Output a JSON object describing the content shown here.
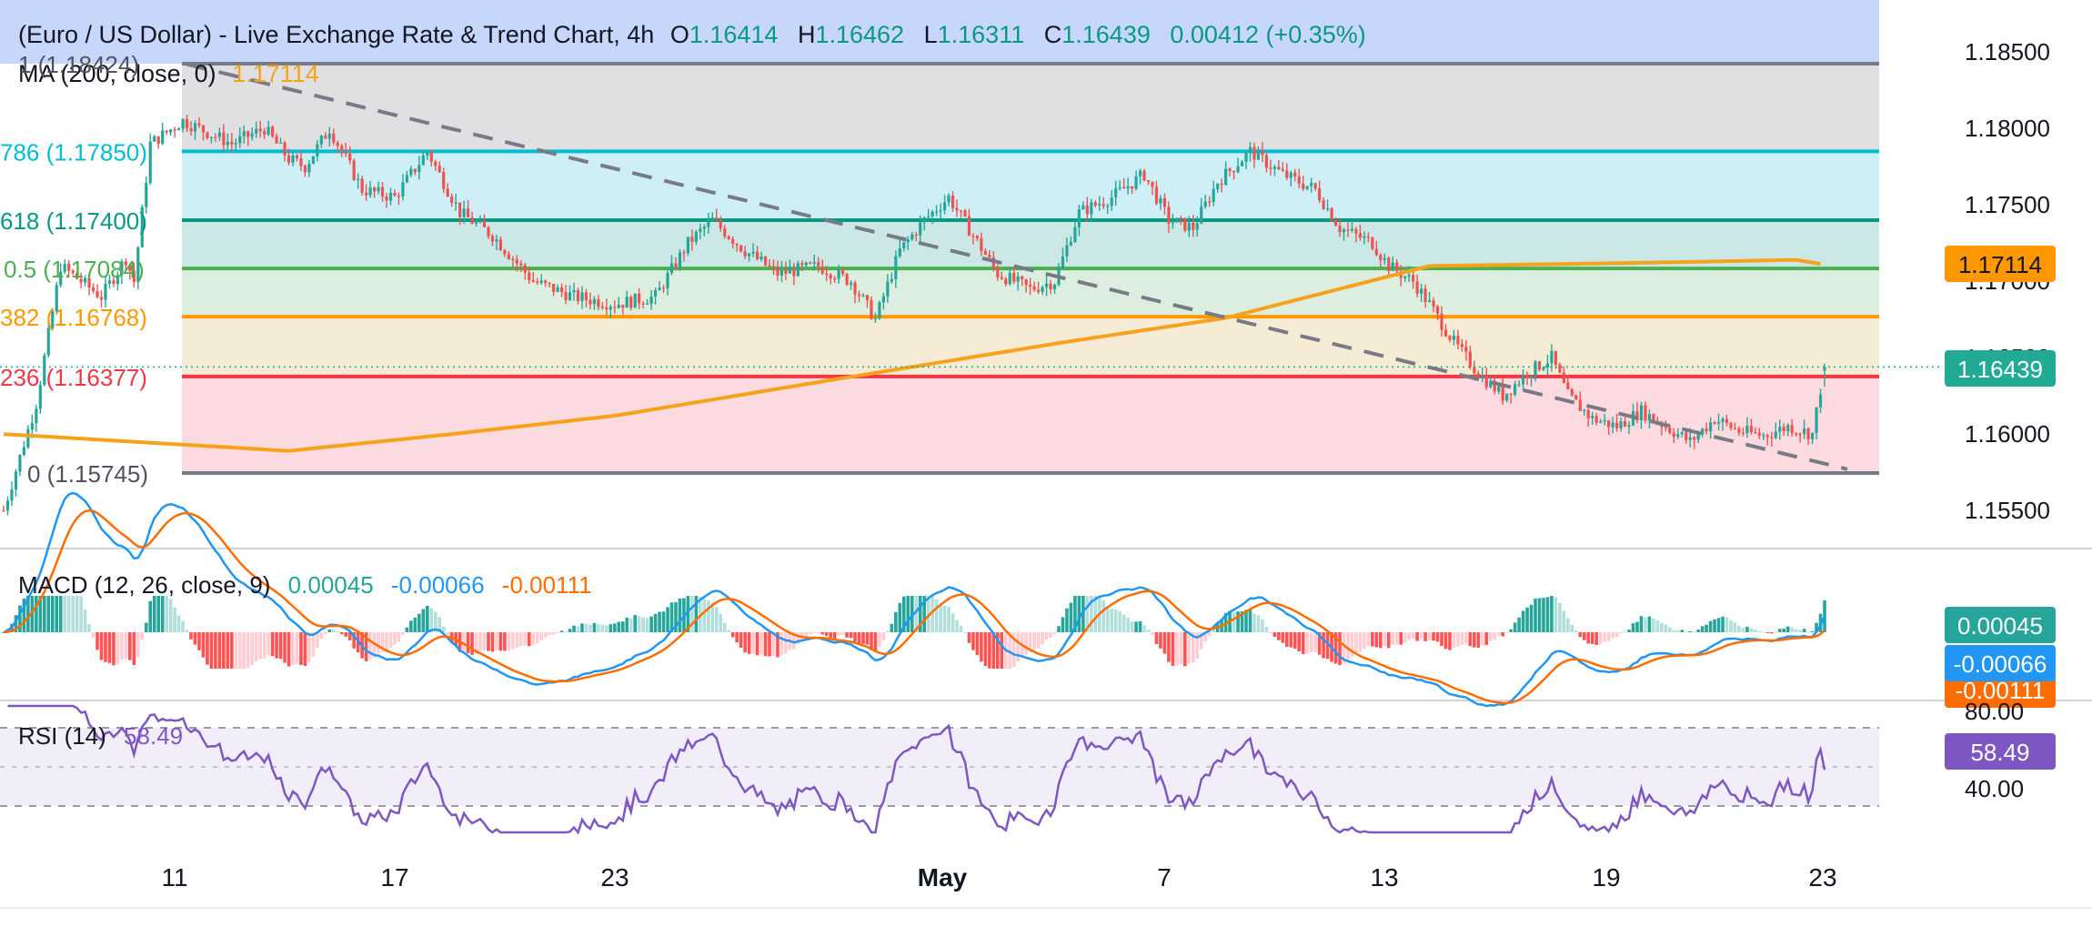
{
  "header": {
    "title": "(Euro / US Dollar) - Live Exchange Rate & Trend Chart, 4h",
    "open_label": "O",
    "open": "1.16414",
    "high_label": "H",
    "high": "1.16462",
    "low_label": "L",
    "low": "1.16311",
    "close_label": "C",
    "close": "1.16439",
    "change": "0.00412 (+0.35%)"
  },
  "ma": {
    "label": "MA (200, close, 0)",
    "value": "1.17114",
    "badge": "1.17114"
  },
  "last_price_badge": "1.16439",
  "fib_labels": [
    {
      "text": "1 (1.18424)",
      "level": 1.18424
    },
    {
      "text": "786 (1.17850)",
      "level": 1.1785
    },
    {
      "text": "618 (1.17400)",
      "level": 1.174
    },
    {
      "text": "0.5 (1.17084)",
      "level": 1.17084
    },
    {
      "text": "382 (1.16768)",
      "level": 1.16768
    },
    {
      "text": "236 (1.16377)",
      "level": 1.16377
    },
    {
      "text": "0 (1.15745)",
      "level": 1.15745
    }
  ],
  "price_axis": [
    "1.18500",
    "1.18000",
    "1.17500",
    "1.17000",
    "1.16500",
    "1.16000",
    "1.15500"
  ],
  "time_axis": [
    "11",
    "17",
    "23",
    "May",
    "7",
    "13",
    "19",
    "23"
  ],
  "macd": {
    "label": "MACD (12, 26, close, 9)",
    "hist": "0.00045",
    "macd": "-0.00066",
    "signal": "-0.00111",
    "badge_hist": "0.00045",
    "badge_macd": "-0.00066",
    "badge_signal": "-0.00111"
  },
  "rsi": {
    "label": "RSI (14)",
    "value": "58.49",
    "badge": "58.49",
    "axis": [
      "80.00",
      "40.00"
    ]
  },
  "colors": {
    "up": "#26a69a",
    "down": "#ef5350",
    "ma": "#f7a21b",
    "macd": "#2196f3",
    "signal": "#ff6d00",
    "rsi": "#7e57c2",
    "trend": "#787b86",
    "last": "#22ab94"
  },
  "chart_data": {
    "type": "candlestick",
    "timeframe": "4h",
    "ylim": [
      1.1525,
      1.187
    ],
    "ohlc_last": {
      "open": 1.16414,
      "high": 1.16462,
      "low": 1.16311,
      "close": 1.16439
    },
    "close_path": [
      [
        0,
        1.155
      ],
      [
        8,
        1.162
      ],
      [
        14,
        1.171
      ],
      [
        24,
        1.169
      ],
      [
        30,
        1.1715
      ],
      [
        32,
        1.17
      ],
      [
        36,
        1.179
      ],
      [
        44,
        1.1805
      ],
      [
        56,
        1.179
      ],
      [
        64,
        1.18
      ],
      [
        70,
        1.178
      ],
      [
        74,
        1.1775
      ],
      [
        80,
        1.18
      ],
      [
        88,
        1.176
      ],
      [
        96,
        1.1755
      ],
      [
        104,
        1.1785
      ],
      [
        112,
        1.1745
      ],
      [
        120,
        1.173
      ],
      [
        130,
        1.17
      ],
      [
        140,
        1.169
      ],
      [
        150,
        1.1685
      ],
      [
        160,
        1.169
      ],
      [
        168,
        1.1725
      ],
      [
        174,
        1.174
      ],
      [
        182,
        1.172
      ],
      [
        190,
        1.1705
      ],
      [
        200,
        1.171
      ],
      [
        208,
        1.17
      ],
      [
        214,
        1.1675
      ],
      [
        220,
        1.172
      ],
      [
        226,
        1.174
      ],
      [
        232,
        1.1755
      ],
      [
        238,
        1.173
      ],
      [
        244,
        1.1705
      ],
      [
        252,
        1.1695
      ],
      [
        258,
        1.17
      ],
      [
        264,
        1.1745
      ],
      [
        272,
        1.1755
      ],
      [
        280,
        1.177
      ],
      [
        286,
        1.174
      ],
      [
        292,
        1.1735
      ],
      [
        298,
        1.1765
      ],
      [
        306,
        1.1785
      ],
      [
        314,
        1.177
      ],
      [
        322,
        1.176
      ],
      [
        328,
        1.1735
      ],
      [
        336,
        1.1725
      ],
      [
        340,
        1.171
      ],
      [
        346,
        1.17
      ],
      [
        350,
        1.1685
      ],
      [
        356,
        1.166
      ],
      [
        362,
        1.164
      ],
      [
        368,
        1.1625
      ],
      [
        374,
        1.164
      ],
      [
        380,
        1.165
      ],
      [
        384,
        1.1625
      ],
      [
        390,
        1.161
      ],
      [
        396,
        1.1605
      ],
      [
        402,
        1.1615
      ],
      [
        408,
        1.1605
      ],
      [
        414,
        1.1595
      ],
      [
        420,
        1.161
      ],
      [
        426,
        1.1602
      ],
      [
        432,
        1.1599
      ],
      [
        438,
        1.1605
      ],
      [
        444,
        1.16
      ],
      [
        447,
        1.1644
      ]
    ],
    "candle_count": 448,
    "ma200_path": [
      [
        0,
        1.16
      ],
      [
        70,
        1.1589
      ],
      [
        110,
        1.16
      ],
      [
        150,
        1.1612
      ],
      [
        200,
        1.1634
      ],
      [
        260,
        1.166
      ],
      [
        300,
        1.1676
      ],
      [
        350,
        1.171
      ],
      [
        400,
        1.1712
      ],
      [
        440,
        1.1714
      ],
      [
        447,
        1.1711
      ]
    ],
    "trendline": {
      "from": [
        45,
        1.1842
      ],
      "to": [
        447,
        1.158
      ]
    },
    "fib_levels": [
      1.18424,
      1.1785,
      1.174,
      1.17084,
      1.16768,
      1.16377,
      1.15745
    ],
    "macd_values": {
      "hist": 0.00045,
      "macd": -0.00066,
      "signal": -0.00111
    },
    "rsi_value": 58.49,
    "rsi_levels": [
      80,
      40
    ]
  }
}
